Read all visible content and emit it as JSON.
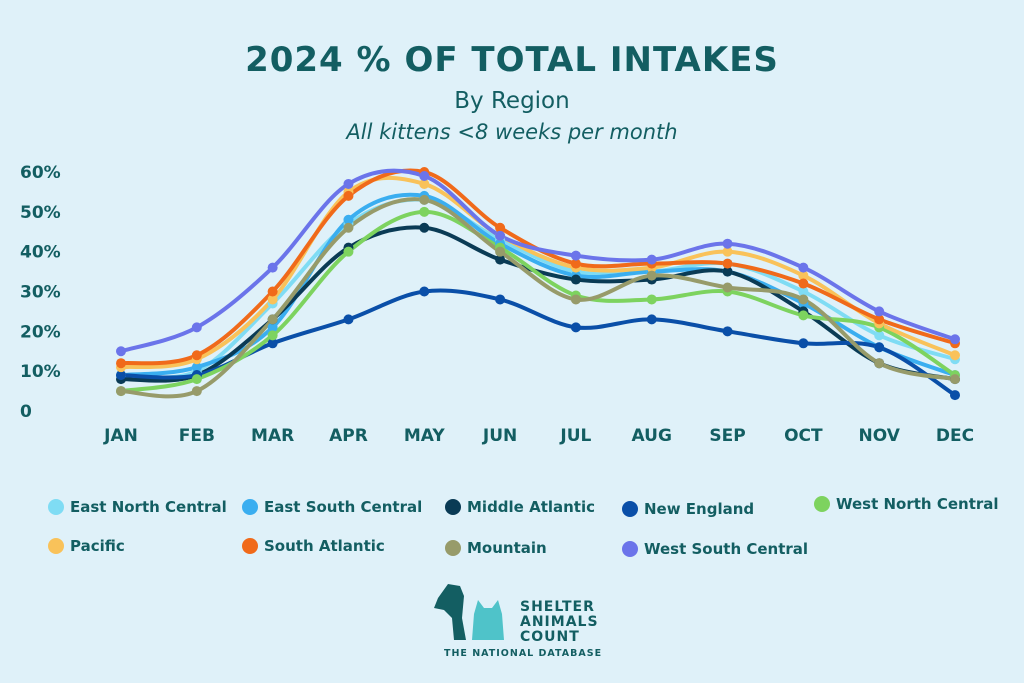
{
  "chart_data": {
    "type": "line",
    "title": "2024 % OF TOTAL INTAKES",
    "subtitle": "By Region",
    "subtitle2": "All kittens <8 weeks per month",
    "categories": [
      "JAN",
      "FEB",
      "MAR",
      "APR",
      "MAY",
      "JUN",
      "JUL",
      "AUG",
      "SEP",
      "OCT",
      "NOV",
      "DEC"
    ],
    "yticks": [
      "0",
      "10%",
      "20%",
      "30%",
      "40%",
      "50%",
      "60%"
    ],
    "ylim": [
      0,
      60
    ],
    "series": [
      {
        "name": "East North Central",
        "color": "#7fdcf4",
        "values": [
          9,
          10,
          27,
          47,
          53,
          43,
          35,
          35,
          37,
          30,
          19,
          13
        ]
      },
      {
        "name": "East South Central",
        "color": "#3aaef0",
        "values": [
          9,
          11,
          21,
          48,
          54,
          42,
          34,
          35,
          35,
          27,
          16,
          9
        ]
      },
      {
        "name": "Middle Atlantic",
        "color": "#0a3b55",
        "values": [
          8,
          9,
          23,
          41,
          46,
          38,
          33,
          33,
          35,
          25,
          12,
          8
        ]
      },
      {
        "name": "New England",
        "color": "#0a4fa8",
        "values": [
          9,
          9,
          17,
          23,
          30,
          28,
          21,
          23,
          20,
          17,
          16,
          4
        ]
      },
      {
        "name": "West North Central",
        "color": "#7dd35f",
        "values": [
          5,
          8,
          19,
          40,
          50,
          41,
          29,
          28,
          30,
          24,
          21,
          9
        ]
      },
      {
        "name": "Pacific",
        "color": "#f9c25a",
        "values": [
          11,
          13,
          28,
          55,
          57,
          44,
          36,
          36,
          40,
          34,
          22,
          14
        ]
      },
      {
        "name": "South Atlantic",
        "color": "#f06a1a",
        "values": [
          12,
          14,
          30,
          54,
          60,
          46,
          37,
          37,
          37,
          32,
          23,
          17
        ]
      },
      {
        "name": "Mountain",
        "color": "#979b6a",
        "values": [
          5,
          5,
          23,
          46,
          53,
          40,
          28,
          34,
          31,
          28,
          12,
          8
        ]
      },
      {
        "name": "West South Central",
        "color": "#6b74ea",
        "values": [
          15,
          21,
          36,
          57,
          59,
          44,
          39,
          38,
          42,
          36,
          25,
          18
        ]
      }
    ]
  },
  "logo": {
    "line1": "SHELTER",
    "line2": "ANIMALS",
    "line3": "COUNT",
    "tagline": "THE NATIONAL DATABASE"
  }
}
